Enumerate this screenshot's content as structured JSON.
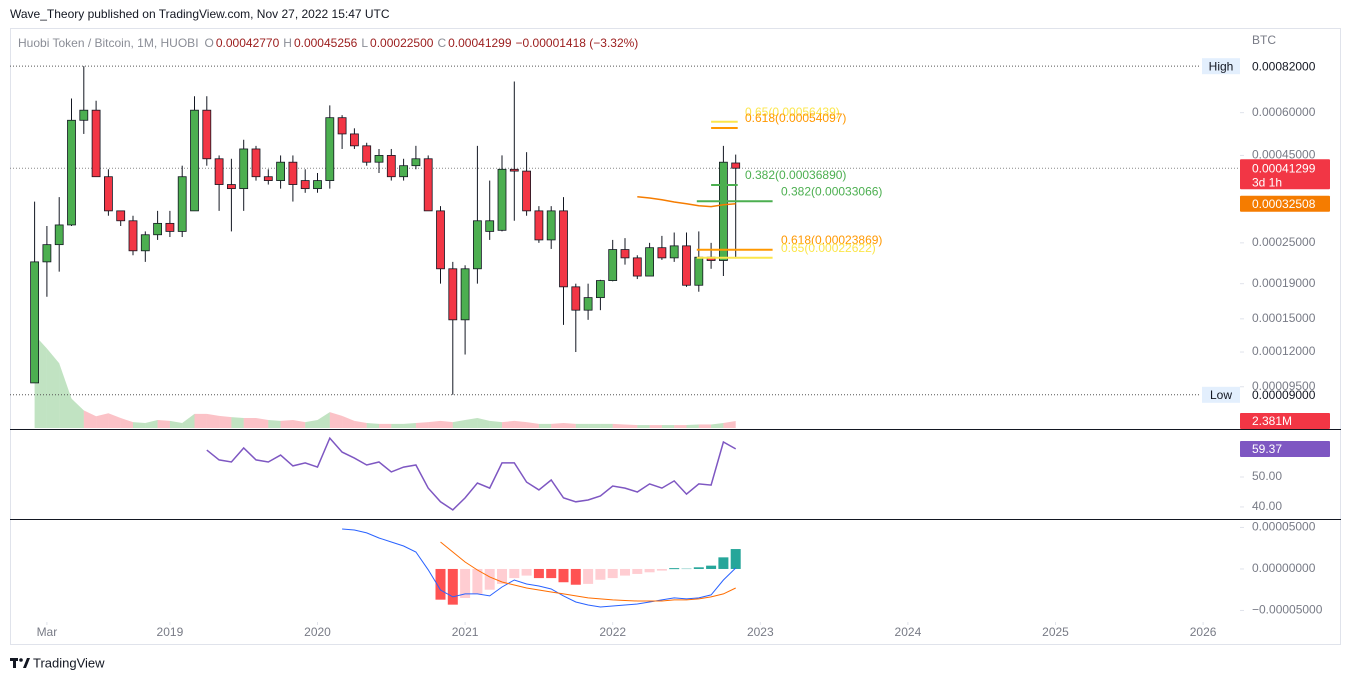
{
  "header": {
    "publisher": "Wave_Theory published on TradingView.com, Nov 27, 2022 15:47 UTC",
    "symbol": "Huobi Token / Bitcoin, 1M, HUOBI",
    "ohlc": [
      {
        "key": "O",
        "value": "0.00042770"
      },
      {
        "key": "H",
        "value": "0.00045256"
      },
      {
        "key": "L",
        "value": "0.00022500"
      },
      {
        "key": "C",
        "value": "0.00041299"
      }
    ],
    "change": "−0.00001418 (−3.32%)"
  },
  "chart_data": [
    {
      "type": "candlestick",
      "currency": "BTC",
      "scale": "log",
      "xlim": [
        -2,
        98
      ],
      "xticks": [
        {
          "value": 1,
          "label": "Mar"
        },
        {
          "value": 11,
          "label": "2019"
        },
        {
          "value": 23,
          "label": "2020"
        },
        {
          "value": 35,
          "label": "2021"
        },
        {
          "value": 47,
          "label": "2022"
        },
        {
          "value": 59,
          "label": "2023"
        },
        {
          "value": 71,
          "label": "2024"
        },
        {
          "value": 83,
          "label": "2025"
        },
        {
          "value": 95,
          "label": "2026"
        }
      ],
      "ylim": [
        7.2e-05,
        0.00106
      ],
      "yticks": [
        {
          "value": 0.0006,
          "label": "0.00060000"
        },
        {
          "value": 0.00045,
          "label": "0.00045000"
        },
        {
          "value": 0.00025,
          "label": "0.00025000"
        },
        {
          "value": 0.00019,
          "label": "0.00019000"
        },
        {
          "value": 0.00015,
          "label": "0.00015000"
        },
        {
          "value": 0.00012,
          "label": "0.00012000"
        },
        {
          "value": 9.5e-05,
          "label": "0.00009500"
        }
      ],
      "up_color": "#4caf50",
      "down_color": "#f23645",
      "open": [
        9.75e-05,
        0.00022,
        0.000247,
        0.000282,
        0.00057,
        0.00061,
        0.00039,
        0.00031,
        0.00029,
        0.000237,
        0.000264,
        0.000285,
        0.00027,
        0.00031,
        0.00061,
        0.00044,
        0.00037,
        0.00036,
        0.00047,
        0.00039,
        0.00038,
        0.00043,
        0.00038,
        0.00036,
        0.00038,
        0.00058,
        0.00052,
        0.00048,
        0.00043,
        0.00045,
        0.00039,
        0.00042,
        0.00044,
        0.00031,
        0.00021,
        0.000149,
        0.00021,
        0.00027,
        0.000272,
        0.00041,
        0.000405,
        0.00031,
        0.000255,
        0.00031,
        0.000186,
        0.000159,
        0.000173,
        0.000194,
        0.000239,
        0.000226,
        0.0002,
        0.000242,
        0.000226,
        0.000245,
        0.000188,
        0.000227,
        0.000222,
        0.0004277
      ],
      "high": [
        0.00033,
        0.00028,
        0.00034,
        0.00066,
        0.00082,
        0.00065,
        0.00041,
        0.00031,
        0.0003,
        0.00027,
        0.00031,
        0.00031,
        0.00042,
        0.00067,
        0.00067,
        0.00045,
        0.00044,
        0.0005,
        0.00048,
        0.00041,
        0.00045,
        0.00045,
        0.00041,
        0.0004,
        0.00063,
        0.00059,
        0.00054,
        0.00049,
        0.00047,
        0.00047,
        0.00044,
        0.00048,
        0.00045,
        0.00032,
        0.00022,
        0.000215,
        0.00048,
        0.00038,
        0.00045,
        0.00074,
        0.00046,
        0.00032,
        0.00032,
        0.00034,
        0.00019,
        0.00019,
        0.000195,
        0.000255,
        0.000258,
        0.00023,
        0.00025,
        0.000262,
        0.000268,
        0.000268,
        0.00027,
        0.00025,
        0.00048,
        0.00045256
      ],
      "low": [
        9.75e-05,
        0.000174,
        0.000206,
        0.00028,
        0.00052,
        0.00039,
        0.0003,
        0.00028,
        0.00023,
        0.00022,
        0.000255,
        0.00026,
        0.00026,
        0.00031,
        0.00042,
        0.00031,
        0.00027,
        0.00031,
        0.00038,
        0.00037,
        0.00036,
        0.00033,
        0.00035,
        0.00035,
        0.00036,
        0.00047,
        0.00047,
        0.00042,
        0.0004,
        0.00038,
        0.00038,
        0.00041,
        0.00031,
        0.00019,
        9e-05,
        0.000118,
        0.00019,
        0.000255,
        0.00027,
        0.00029,
        0.0003,
        0.00025,
        0.00024,
        0.000144,
        0.00012,
        0.000149,
        0.000159,
        0.000193,
        0.000216,
        0.000196,
        0.0002,
        0.000223,
        0.00022,
        0.000186,
        0.00018,
        0.00021,
        0.0002,
        0.000225
      ],
      "close": [
        0.00022,
        0.000247,
        0.000282,
        0.00057,
        0.00061,
        0.00039,
        0.00031,
        0.00029,
        0.000237,
        0.000264,
        0.000285,
        0.00027,
        0.00039,
        0.00061,
        0.00044,
        0.00037,
        0.00036,
        0.00047,
        0.00039,
        0.00038,
        0.00043,
        0.00037,
        0.00036,
        0.00038,
        0.00058,
        0.00052,
        0.00048,
        0.00043,
        0.00045,
        0.00039,
        0.00042,
        0.00044,
        0.00031,
        0.00021,
        0.000149,
        0.00021,
        0.00029,
        0.00029,
        0.00041,
        0.000405,
        0.00031,
        0.000255,
        0.00031,
        0.000186,
        0.000159,
        0.000173,
        0.000194,
        0.000239,
        0.000226,
        0.0002,
        0.000242,
        0.000226,
        0.000245,
        0.000188,
        0.000227,
        0.000222,
        0.00043,
        0.00041299
      ],
      "countdown": "3d 1h",
      "extremes": [
        {
          "name": "High",
          "value": 0.00082,
          "label": "0.00082000"
        },
        {
          "name": "Low",
          "value": 9e-05,
          "label": "0.00009000"
        }
      ],
      "moving_average": {
        "color": "#f57c00",
        "values": [
          null,
          null,
          null,
          null,
          null,
          null,
          null,
          null,
          null,
          null,
          null,
          null,
          null,
          null,
          null,
          null,
          null,
          null,
          null,
          null,
          null,
          null,
          null,
          null,
          null,
          null,
          null,
          null,
          null,
          null,
          null,
          null,
          null,
          null,
          null,
          null,
          null,
          null,
          null,
          null,
          null,
          null,
          null,
          null,
          null,
          null,
          null,
          null,
          null,
          0.000341,
          0.000338,
          0.000334,
          0.000329,
          0.000325,
          0.000321,
          0.000319,
          0.000323,
          0.00032508
        ]
      },
      "volume": {
        "values": [
          31600000,
          27000000,
          22000000,
          10000000,
          6000000,
          4000000,
          5000000,
          3400000,
          2000000,
          1700000,
          2700000,
          2400000,
          1700000,
          4800000,
          4800000,
          4100000,
          3700000,
          3400000,
          3400000,
          2700000,
          2400000,
          2700000,
          2000000,
          2700000,
          5400000,
          4100000,
          2400000,
          1700000,
          1400000,
          1400000,
          1400000,
          1700000,
          2000000,
          2400000,
          2000000,
          2700000,
          3400000,
          2400000,
          2000000,
          2400000,
          2000000,
          1400000,
          1400000,
          1700000,
          1400000,
          1400000,
          1400000,
          1400000,
          1200000,
          1000000,
          1000000,
          1000000,
          1000000,
          1000000,
          1200000,
          1200000,
          1700000,
          2381000
        ],
        "last_label": "2.381M"
      },
      "levels": [
        {
          "label": "0.65(0.00056439)",
          "value": 0.00056439,
          "color": "#fbe64b"
        },
        {
          "label": "0.618(0.00054097)",
          "value": 0.00054097,
          "color": "#ff9800"
        },
        {
          "label": "0.382(0.00036890)",
          "value": 0.0003689,
          "color": "#4caf50"
        },
        {
          "label": "0.382(0.00033066)",
          "value": 0.00033066,
          "color": "#4caf50"
        },
        {
          "label": "0.618(0.00023869)",
          "value": 0.00023869,
          "color": "#ff9800"
        },
        {
          "label": "0.65(0.00022622)",
          "value": 0.00022622,
          "color": "#fbe64b"
        }
      ]
    },
    {
      "type": "line",
      "ylim": [
        36.3,
        65.7
      ],
      "yticks": [
        {
          "value": 50,
          "label": "50.00"
        },
        {
          "value": 40,
          "label": "40.00"
        }
      ],
      "series": [
        {
          "color": "#7e57c2",
          "values": [
            null,
            null,
            null,
            null,
            null,
            null,
            null,
            null,
            null,
            null,
            null,
            null,
            null,
            null,
            59,
            55.7,
            55,
            59.7,
            55.7,
            55,
            57.3,
            53.7,
            54.7,
            53.3,
            63,
            58.3,
            56.3,
            54,
            55,
            51.7,
            53.3,
            54,
            46.3,
            41.7,
            39,
            43,
            48,
            46.3,
            54.7,
            54.7,
            48.3,
            45.7,
            49,
            43,
            41.7,
            42.3,
            43.7,
            47,
            46.3,
            45,
            47.7,
            46.3,
            48.7,
            44.3,
            47.7,
            47.3,
            61.7,
            59.37
          ]
        }
      ]
    },
    {
      "type": "macd",
      "ylim": [
        -6.39e-05,
        5.9e-05
      ],
      "yticks": [
        {
          "value": 5e-05,
          "label": "0.00005000"
        },
        {
          "value": 0,
          "label": "0.00000000"
        },
        {
          "value": -5e-05,
          "label": "−0.00005000"
        }
      ],
      "series": [
        {
          "color": "#2962ff",
          "values": [
            null,
            null,
            null,
            null,
            null,
            null,
            null,
            null,
            null,
            null,
            null,
            null,
            null,
            null,
            null,
            null,
            null,
            null,
            null,
            null,
            null,
            null,
            null,
            null,
            null,
            4.82e-05,
            4.7e-05,
            4.34e-05,
            3.73e-05,
            3.25e-05,
            2.77e-05,
            2.05e-05,
            -1e-06,
            -2.53e-05,
            -3.37e-05,
            -3.01e-05,
            -3.01e-05,
            -3.25e-05,
            -2.17e-05,
            -1.33e-05,
            -1.81e-05,
            -2.05e-05,
            -2.41e-05,
            -3.25e-05,
            -3.98e-05,
            -4.34e-05,
            -4.58e-05,
            -4.46e-05,
            -4.34e-05,
            -4.22e-05,
            -3.98e-05,
            -3.73e-05,
            -3.49e-05,
            -3.61e-05,
            -3.49e-05,
            -3.13e-05,
            -1.33e-05,
            1.2e-06
          ]
        },
        {
          "color": "#ff6d00",
          "values": [
            null,
            null,
            null,
            null,
            null,
            null,
            null,
            null,
            null,
            null,
            null,
            null,
            null,
            null,
            null,
            null,
            null,
            null,
            null,
            null,
            null,
            null,
            null,
            null,
            null,
            null,
            null,
            null,
            null,
            null,
            null,
            null,
            null,
            3.25e-05,
            2.05e-05,
            8.4e-06,
            -1.2e-06,
            -9.6e-06,
            -1.57e-05,
            -1.93e-05,
            -2.29e-05,
            -2.53e-05,
            -2.77e-05,
            -3.01e-05,
            -3.25e-05,
            -3.49e-05,
            -3.61e-05,
            -3.73e-05,
            -3.8e-05,
            -3.86e-05,
            -3.86e-05,
            -3.86e-05,
            -3.73e-05,
            -3.73e-05,
            -3.61e-05,
            -3.37e-05,
            -3.01e-05,
            -2.29e-05
          ]
        }
      ],
      "histogram": {
        "colors": {
          "up_pos": "#26a69a",
          "down_pos": "#b2dfdb",
          "down_neg": "#ff5252",
          "up_neg": "#ffcdd2"
        },
        "values": [
          null,
          null,
          null,
          null,
          null,
          null,
          null,
          null,
          null,
          null,
          null,
          null,
          null,
          null,
          null,
          null,
          null,
          null,
          null,
          null,
          null,
          null,
          null,
          null,
          null,
          null,
          null,
          null,
          null,
          null,
          null,
          null,
          null,
          -3.7e-05,
          -4.3e-05,
          -3.5e-05,
          -3e-05,
          -2.5e-05,
          -1.8e-05,
          -1.1e-05,
          -8e-06,
          -1.1e-05,
          -1.1e-05,
          -1.6e-05,
          -1.9e-05,
          -1.8e-05,
          -1.3e-05,
          -1.1e-05,
          -8e-06,
          -6e-06,
          -4e-06,
          -2e-06,
          1e-06,
          1e-06,
          2e-06,
          4e-06,
          1.4e-05,
          2.4e-05
        ]
      }
    }
  ],
  "footer": {
    "brand": "TradingView"
  }
}
